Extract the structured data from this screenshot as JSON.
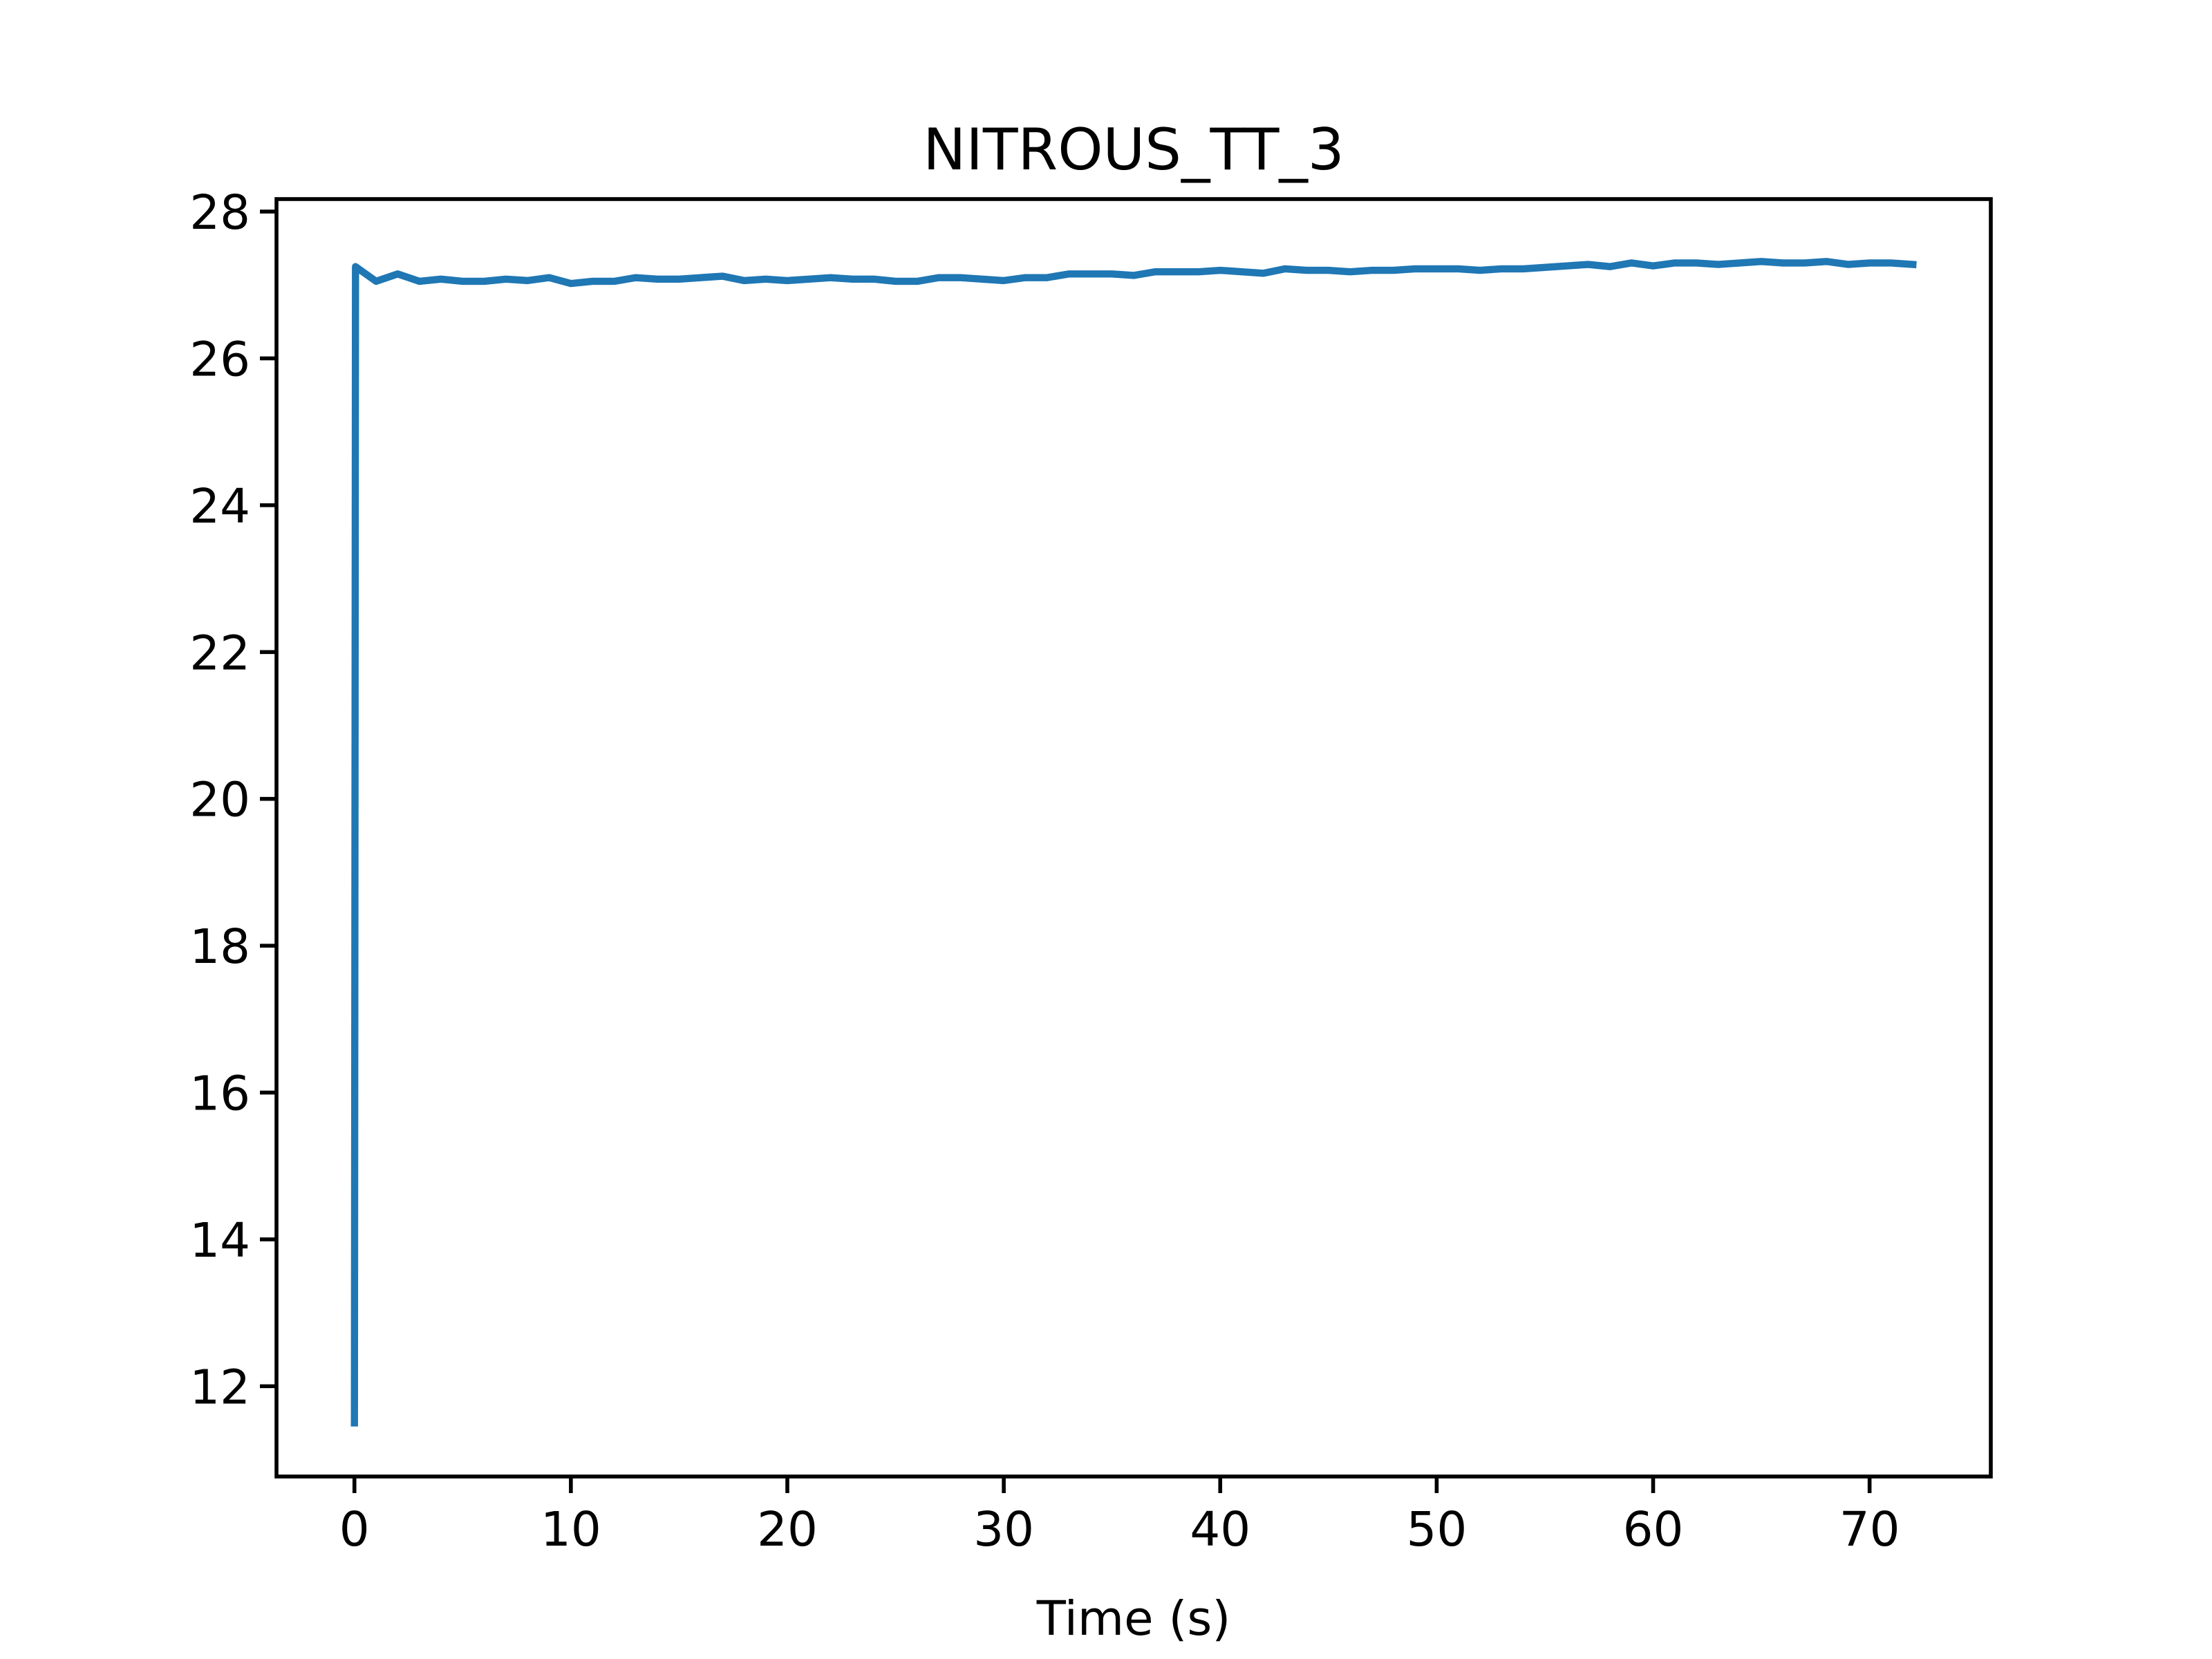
{
  "chart_data": {
    "type": "line",
    "title": "NITROUS_TT_3",
    "xlabel": "Time (s)",
    "x": [
      0,
      0.05,
      1,
      2,
      3,
      4,
      5,
      6,
      7,
      8,
      9,
      10,
      11,
      12,
      13,
      14,
      15,
      16,
      17,
      18,
      19,
      20,
      21,
      22,
      23,
      24,
      25,
      26,
      27,
      28,
      29,
      30,
      31,
      32,
      33,
      34,
      35,
      36,
      37,
      38,
      39,
      40,
      41,
      42,
      43,
      44,
      45,
      46,
      47,
      48,
      49,
      50,
      51,
      52,
      53,
      54,
      55,
      56,
      57,
      58,
      59,
      60,
      61,
      62,
      63,
      64,
      65,
      66,
      67,
      68,
      69,
      70,
      71,
      72
    ],
    "series": [
      {
        "name": "NITROUS_TT_3",
        "color": "#1f77b4",
        "values": [
          11.5,
          27.25,
          27.05,
          27.15,
          27.05,
          27.08,
          27.05,
          27.05,
          27.08,
          27.06,
          27.1,
          27.02,
          27.05,
          27.05,
          27.1,
          27.08,
          27.08,
          27.1,
          27.12,
          27.06,
          27.08,
          27.06,
          27.08,
          27.1,
          27.08,
          27.08,
          27.05,
          27.05,
          27.1,
          27.1,
          27.08,
          27.06,
          27.1,
          27.1,
          27.15,
          27.15,
          27.15,
          27.13,
          27.18,
          27.18,
          27.18,
          27.2,
          27.18,
          27.16,
          27.22,
          27.2,
          27.2,
          27.18,
          27.2,
          27.2,
          27.22,
          27.22,
          27.22,
          27.2,
          27.22,
          27.22,
          27.24,
          27.26,
          27.28,
          27.25,
          27.3,
          27.26,
          27.3,
          27.3,
          27.28,
          27.3,
          27.32,
          27.3,
          27.3,
          27.32,
          27.28,
          27.3,
          27.3,
          27.28
        ]
      }
    ],
    "xlim": [
      -3.6,
      75.6
    ],
    "ylim": [
      10.77,
      28.17
    ],
    "xticks": [
      0,
      10,
      20,
      30,
      40,
      50,
      60,
      70
    ],
    "yticks": [
      12,
      14,
      16,
      18,
      20,
      22,
      24,
      26,
      28
    ]
  }
}
